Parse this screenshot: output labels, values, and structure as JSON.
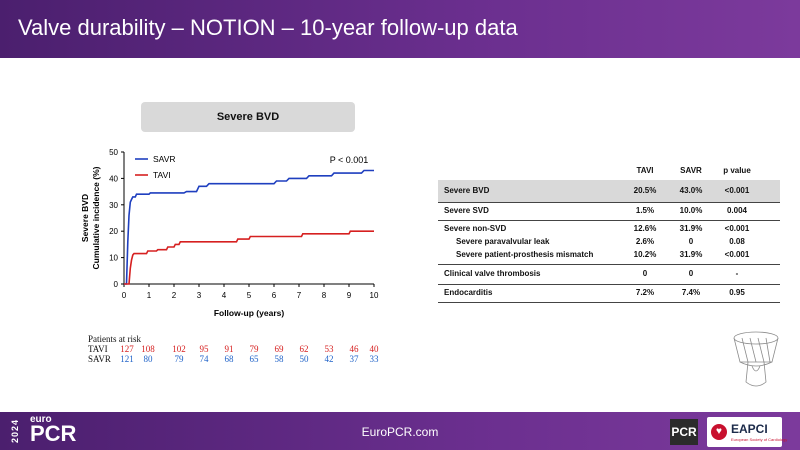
{
  "header": {
    "title": "Valve durability – NOTION – 10-year follow-up data"
  },
  "panel": {
    "tab_label": "Severe BVD"
  },
  "chart_data": {
    "type": "line",
    "ylabel": "Severe BVD\nCumulative incidence (%)",
    "ylabel_line1": "Severe BVD",
    "ylabel_line2": "Cumulative incidence (%)",
    "xlabel": "Follow-up (years)",
    "xlim": [
      0,
      10
    ],
    "ylim": [
      0,
      50
    ],
    "xticks": [
      "0",
      "1",
      "2",
      "3",
      "4",
      "5",
      "6",
      "7",
      "8",
      "9",
      "10"
    ],
    "yticks": [
      "0",
      "10",
      "20",
      "30",
      "40",
      "50"
    ],
    "annotation": "P < 0.001",
    "legend_position": "top-left",
    "series": [
      {
        "name": "SAVR",
        "color": "#1f3fbf",
        "points": [
          [
            0,
            0
          ],
          [
            0.1,
            0
          ],
          [
            0.15,
            16
          ],
          [
            0.2,
            26
          ],
          [
            0.25,
            31
          ],
          [
            0.3,
            32
          ],
          [
            0.35,
            33
          ],
          [
            0.45,
            33
          ],
          [
            0.5,
            34
          ],
          [
            1.0,
            34
          ],
          [
            1.05,
            34.5
          ],
          [
            2.4,
            34.5
          ],
          [
            2.5,
            35
          ],
          [
            2.9,
            35
          ],
          [
            3.0,
            37
          ],
          [
            3.3,
            37
          ],
          [
            3.4,
            38
          ],
          [
            6.0,
            38
          ],
          [
            6.1,
            39
          ],
          [
            6.5,
            39
          ],
          [
            6.6,
            40
          ],
          [
            7.3,
            40
          ],
          [
            7.4,
            41
          ],
          [
            8.3,
            41
          ],
          [
            8.4,
            42
          ],
          [
            9.5,
            42
          ],
          [
            9.6,
            43
          ],
          [
            10,
            43
          ]
        ]
      },
      {
        "name": "TAVI",
        "color": "#d62020",
        "points": [
          [
            0,
            0
          ],
          [
            0.2,
            0
          ],
          [
            0.25,
            6
          ],
          [
            0.3,
            9
          ],
          [
            0.35,
            11
          ],
          [
            0.4,
            11.5
          ],
          [
            0.9,
            11.5
          ],
          [
            0.95,
            12.5
          ],
          [
            1.3,
            12.5
          ],
          [
            1.35,
            13
          ],
          [
            1.7,
            13
          ],
          [
            1.75,
            14
          ],
          [
            2.0,
            14
          ],
          [
            2.05,
            15
          ],
          [
            2.2,
            15
          ],
          [
            2.25,
            16
          ],
          [
            4.5,
            16
          ],
          [
            4.55,
            17
          ],
          [
            5.0,
            17
          ],
          [
            5.05,
            18
          ],
          [
            7.1,
            18
          ],
          [
            7.15,
            19
          ],
          [
            9.0,
            19
          ],
          [
            9.05,
            20
          ],
          [
            10,
            20
          ]
        ]
      }
    ]
  },
  "risk": {
    "title": "Patients at risk",
    "tavi": {
      "label": "TAVI",
      "color": "#d62020",
      "values": [
        "127",
        "108",
        "102",
        "95",
        "91",
        "79",
        "69",
        "62",
        "53",
        "46",
        "40"
      ]
    },
    "savr": {
      "label": "SAVR",
      "color": "#1f62c8",
      "values": [
        "121",
        "80",
        "79",
        "74",
        "68",
        "65",
        "58",
        "50",
        "42",
        "37",
        "33"
      ]
    }
  },
  "table": {
    "headers": [
      "TAVI",
      "SAVR",
      "p value"
    ],
    "rows": [
      {
        "name": "Severe BVD",
        "tavi": "20.5%",
        "savr": "43.0%",
        "p": "<0.001"
      },
      {
        "name": "Severe SVD",
        "tavi": "1.5%",
        "savr": "10.0%",
        "p": "0.004"
      },
      {
        "name": "Severe non-SVD",
        "tavi": "12.6%",
        "savr": "31.9%",
        "p": "<0.001"
      },
      {
        "name": "Severe paravalvular leak",
        "tavi": "2.6%",
        "savr": "0",
        "p": "0.08"
      },
      {
        "name": "Severe patient-prosthesis mismatch",
        "tavi": "10.2%",
        "savr": "31.9%",
        "p": "<0.001"
      },
      {
        "name": "Clinical valve thrombosis",
        "tavi": "0",
        "savr": "0",
        "p": "-"
      },
      {
        "name": "Endocarditis",
        "tavi": "7.2%",
        "savr": "7.4%",
        "p": "0.95"
      }
    ]
  },
  "footer": {
    "logo_year": "2024",
    "logo_euro": "euro",
    "logo_pcr": "PCR",
    "site": "EuroPCR.com",
    "pcr_badge": "PCR",
    "eapci_name": "EAPCI",
    "eapci_sub": "European Society of Cardiology",
    "icons": [
      "heart-icon",
      "valve-illustration"
    ]
  }
}
